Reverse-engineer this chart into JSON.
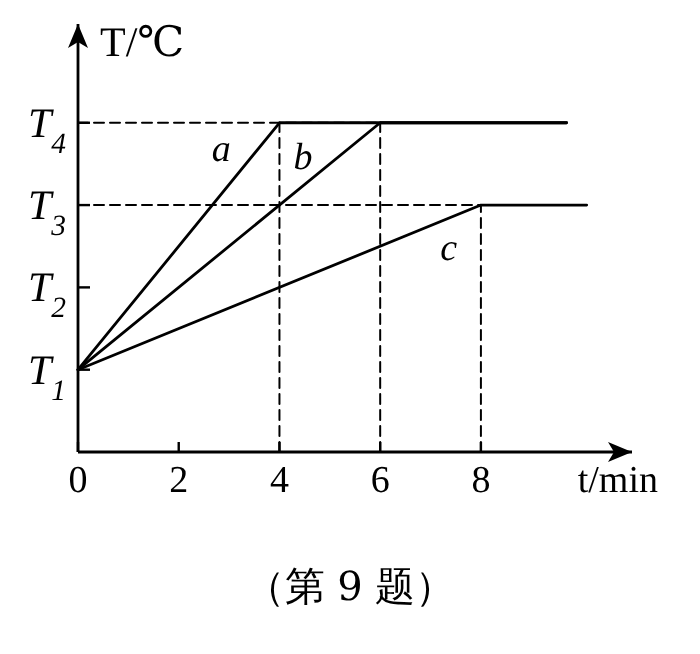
{
  "chart_data": {
    "type": "line",
    "xlabel": "t/min",
    "ylabel": "T/℃",
    "annotations": [
      "（第 9 题）"
    ],
    "xlim": [
      0,
      11
    ],
    "ylim": [
      0,
      5.2
    ],
    "xticks": [
      0,
      2,
      4,
      6,
      8
    ],
    "yticks": [
      {
        "value": 1,
        "label": "T$_{1}$"
      },
      {
        "value": 2,
        "label": "T$_{2}$"
      },
      {
        "value": 3,
        "label": "T$_{3}$"
      },
      {
        "value": 4,
        "label": "T$_{4}$"
      }
    ],
    "series": [
      {
        "name": "a",
        "color": "#000000",
        "x": [
          0,
          4,
          9.7
        ],
        "values": [
          1,
          4,
          4
        ],
        "line_style": "solid"
      },
      {
        "name": "b",
        "color": "#000000",
        "x": [
          0,
          6,
          9.7
        ],
        "values": [
          1,
          4,
          4
        ],
        "line_style": "solid"
      },
      {
        "name": "c",
        "color": "#000000",
        "x": [
          0,
          8,
          10.1
        ],
        "values": [
          1,
          3,
          3
        ],
        "line_style": "solid"
      },
      {
        "color": "#000000",
        "x": [
          0,
          6
        ],
        "values": [
          4,
          4
        ],
        "line_style": "dashed"
      },
      {
        "color": "#000000",
        "x": [
          0,
          8
        ],
        "values": [
          3,
          3
        ],
        "line_style": "dashed"
      },
      {
        "color": "#000000",
        "x": [
          4,
          4
        ],
        "values": [
          0,
          4
        ],
        "line_style": "dashed"
      },
      {
        "color": "#000000",
        "x": [
          6,
          6
        ],
        "values": [
          0,
          4
        ],
        "line_style": "dashed"
      },
      {
        "color": "#000000",
        "x": [
          8,
          8
        ],
        "values": [
          0,
          3
        ],
        "line_style": "dashed"
      }
    ]
  }
}
